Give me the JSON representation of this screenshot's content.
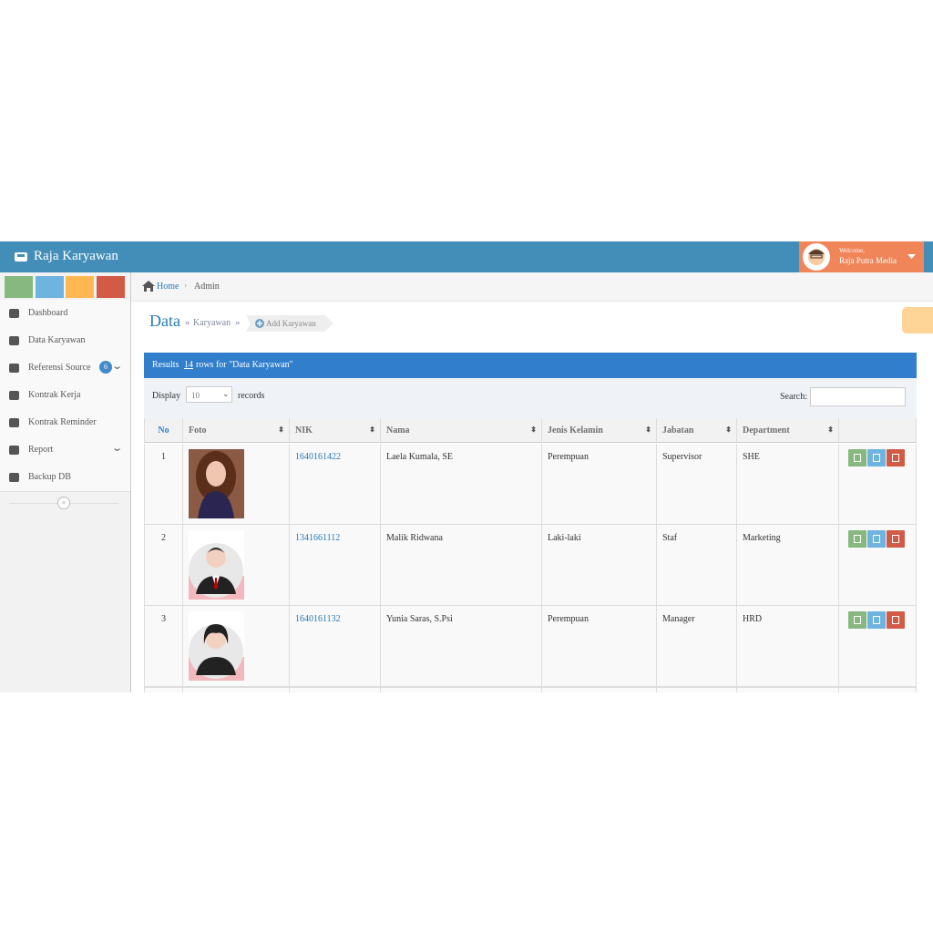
{
  "header": {
    "title": "Raja Karyawan",
    "welcome": "Welcome,",
    "user": "Raja Putra Media"
  },
  "sidebar": {
    "menu": [
      {
        "label": "Dashboard"
      },
      {
        "label": "Data Karyawan"
      },
      {
        "label": "Referensi Source",
        "badge": "6"
      },
      {
        "label": "Kontrak Kerja"
      },
      {
        "label": "Kontrak Reminder"
      },
      {
        "label": "Report"
      },
      {
        "label": "Backup DB"
      }
    ]
  },
  "breadcrumb": [
    "Home",
    "Admin"
  ],
  "page_header": {
    "title": "Data",
    "subtitle": "Karyawan",
    "button": "Add Karyawan"
  },
  "results": {
    "prefix": "Results",
    "count": "14",
    "suffix": "rows for \"Data Karyawan\""
  },
  "filters": {
    "display": "Display",
    "page_size": "10",
    "records": "records",
    "search": "Search:"
  },
  "table": {
    "headers": [
      "No",
      "Foto",
      "NIK",
      "Nama",
      "Jenis Kelamin",
      "Jabatan",
      "Department"
    ],
    "rows": [
      [
        "1",
        "1640161422",
        "Laela Kumala, SE",
        "Perempuan",
        "Supervisor",
        "SHE"
      ],
      [
        "2",
        "1341661112",
        "Malik Ridwana",
        "Laki-laki",
        "Staf",
        "Marketing"
      ],
      [
        "3",
        "1640161132",
        "Yunia Saras, S.Psi",
        "Perempuan",
        "Manager",
        "HRD"
      ]
    ]
  }
}
